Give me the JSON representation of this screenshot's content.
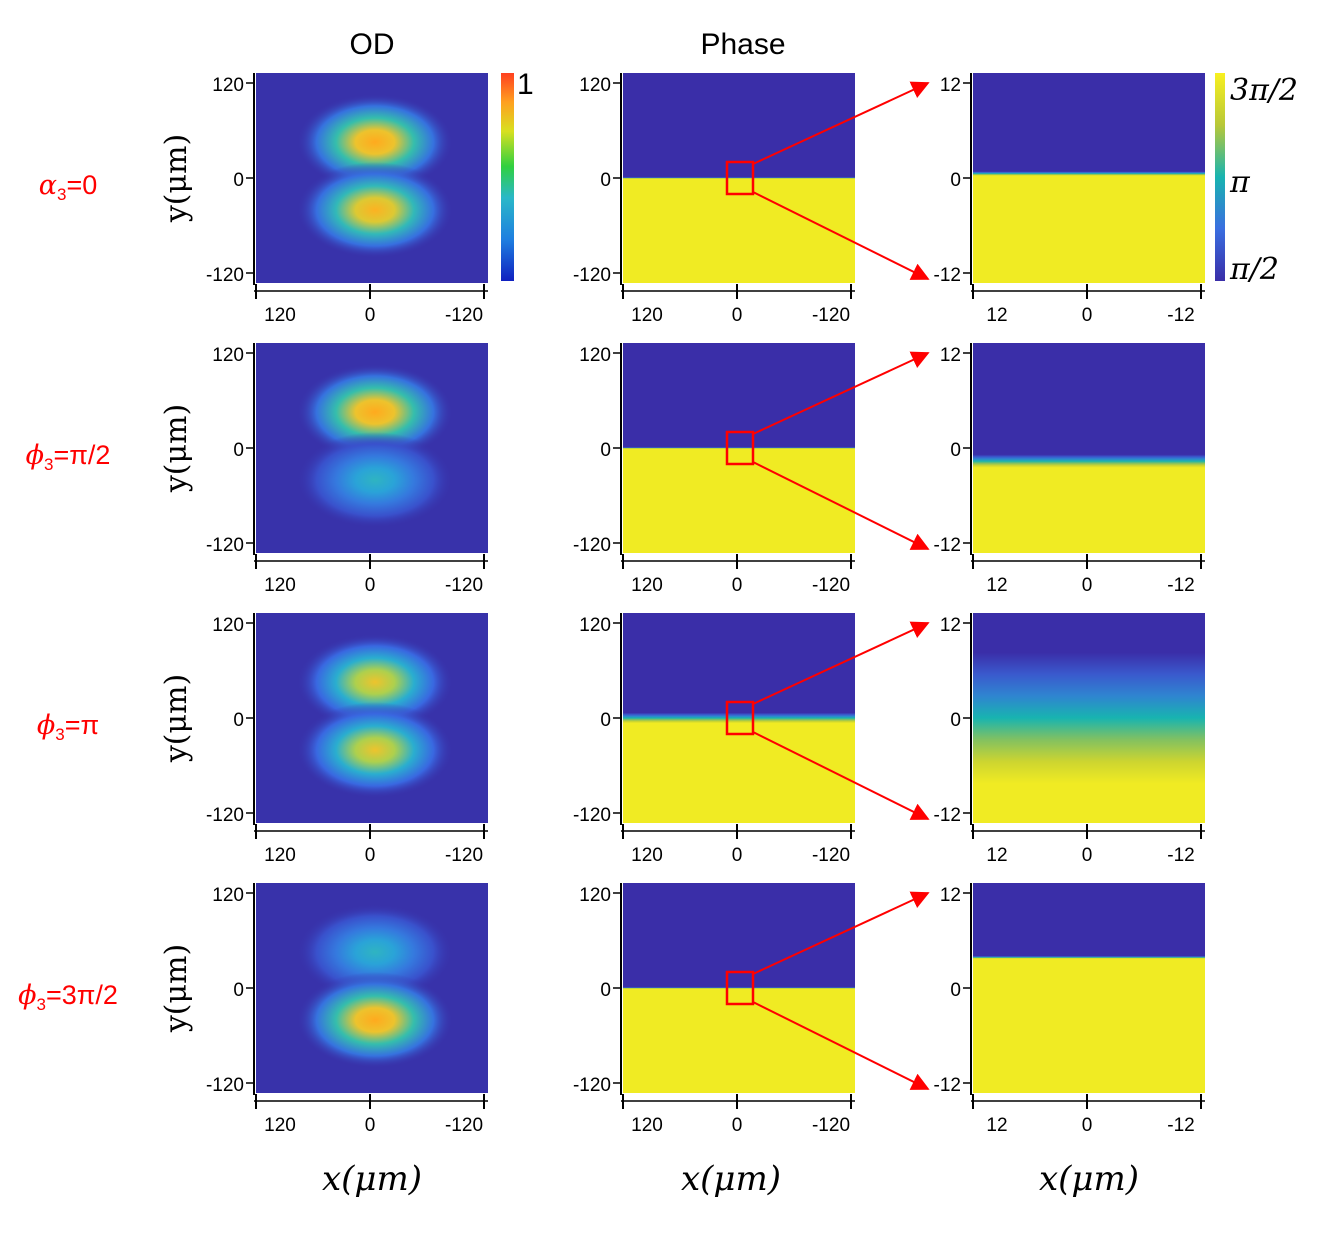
{
  "chart_data": {
    "type": "heatmap",
    "column_titles": {
      "od": "OD",
      "phase": "Phase"
    },
    "od_colorbar": {
      "max_label": "1",
      "range": [
        0,
        1
      ]
    },
    "phase_colorbar": {
      "ticks": [
        {
          "label": "3π/2",
          "value": 4.712
        },
        {
          "label": "π",
          "value": 3.1416
        },
        {
          "label": "π/2",
          "value": 1.5708
        }
      ],
      "range": [
        1.5708,
        4.712
      ]
    },
    "axis_labels": {
      "y": "y(μm)",
      "x": "x(μm)"
    },
    "wide_ticks": {
      "x": [
        "120",
        "0",
        "-120"
      ],
      "y": [
        "120",
        "0",
        "-120"
      ],
      "values": [
        120,
        0,
        -120
      ]
    },
    "zoom_ticks": {
      "x": [
        "12",
        "0",
        "-12"
      ],
      "y": [
        "12",
        "0",
        "-12"
      ],
      "values": [
        12,
        0,
        -12
      ]
    },
    "rows": [
      {
        "label_symbol": "α",
        "label_sub": "3",
        "label_value": "=0",
        "upper_lobe_od": 1.0,
        "lower_lobe_od": 0.95,
        "phase_boundary_y_um": 0,
        "zoom_transition_width_um": 0.5,
        "zoom_boundary_y_um": 0.5,
        "wide_transition_um": 0
      },
      {
        "label_symbol": "ϕ",
        "label_sub": "3",
        "label_value": "=π/2",
        "upper_lobe_od": 1.0,
        "lower_lobe_od": 0.5,
        "phase_boundary_y_um": 0,
        "zoom_transition_width_um": 1.5,
        "zoom_boundary_y_um": -1.5,
        "wide_transition_um": 0
      },
      {
        "label_symbol": "ϕ",
        "label_sub": "3",
        "label_value": "=π",
        "upper_lobe_od": 0.85,
        "lower_lobe_od": 0.85,
        "phase_boundary_y_um": 0,
        "zoom_transition_width_um": 15,
        "zoom_boundary_y_um": 0,
        "wide_transition_um": 12
      },
      {
        "label_symbol": "ϕ",
        "label_sub": "3",
        "label_value": "=3π/2",
        "upper_lobe_od": 0.5,
        "lower_lobe_od": 1.0,
        "phase_boundary_y_um": 0,
        "zoom_transition_width_um": 0.3,
        "zoom_boundary_y_um": 3.5,
        "wide_transition_um": 0
      }
    ]
  }
}
